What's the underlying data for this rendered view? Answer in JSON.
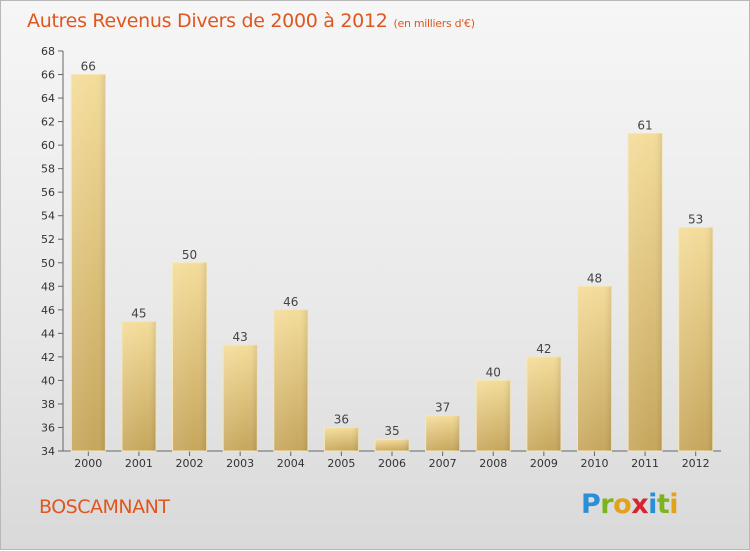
{
  "header": {
    "title": "Autres Revenus Divers de 2000 à 2012",
    "subtitle": "(en milliers d'€)"
  },
  "commune": "BOSCAMNANT",
  "logo": {
    "letters": [
      "P",
      "r",
      "o",
      "x",
      "i",
      "t",
      "i"
    ],
    "colors": [
      "#2a8fd6",
      "#7ab51d",
      "#e3a21a",
      "#d8242f",
      "#2a8fd6",
      "#7ab51d",
      "#e3a21a"
    ]
  },
  "chart_data": {
    "type": "bar",
    "categories": [
      "2000",
      "2001",
      "2002",
      "2003",
      "2004",
      "2005",
      "2006",
      "2007",
      "2008",
      "2009",
      "2010",
      "2011",
      "2012"
    ],
    "values": [
      66,
      45,
      50,
      43,
      46,
      36,
      35,
      37,
      40,
      42,
      48,
      61,
      53
    ],
    "title": "Autres Revenus Divers de 2000 à 2012",
    "subtitle": "(en milliers d'€)",
    "xlabel": "",
    "ylabel": "",
    "ylim": [
      34,
      68
    ],
    "yticks": [
      34,
      36,
      38,
      40,
      42,
      44,
      46,
      48,
      50,
      52,
      54,
      56,
      58,
      60,
      62,
      64,
      66,
      68
    ],
    "grid": false,
    "legend": "none",
    "bar_color_top": "#f4dc9a",
    "bar_color_bottom": "#c6a65c"
  }
}
